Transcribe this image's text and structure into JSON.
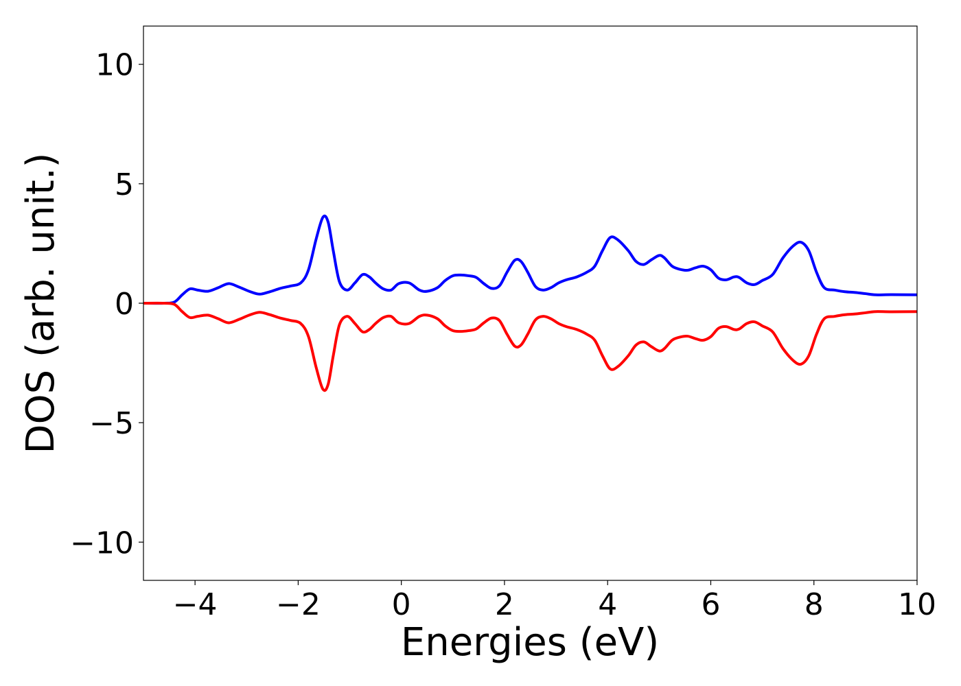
{
  "chart_data": {
    "type": "line",
    "title": "",
    "xlabel": "Energies (eV)",
    "ylabel": "DOS (arb. unit.)",
    "xlim": [
      -5,
      10
    ],
    "ylim": [
      -11.6,
      11.6
    ],
    "grid": false,
    "legend": "none",
    "x_ticks": [
      -4,
      -2,
      0,
      2,
      4,
      6,
      8,
      10
    ],
    "x_tick_labels": [
      "−4",
      "−2",
      "0",
      "2",
      "4",
      "6",
      "8",
      "10"
    ],
    "y_ticks": [
      10,
      5,
      0,
      -5,
      -10
    ],
    "y_tick_labels": [
      "10",
      "5",
      "0",
      "−5",
      "−10"
    ],
    "x": [
      -5.0,
      -4.6,
      -4.4,
      -4.25,
      -4.1,
      -3.95,
      -3.75,
      -3.55,
      -3.35,
      -3.15,
      -2.95,
      -2.75,
      -2.55,
      -2.35,
      -2.15,
      -1.95,
      -1.8,
      -1.65,
      -1.52,
      -1.42,
      -1.32,
      -1.2,
      -1.05,
      -0.9,
      -0.75,
      -0.62,
      -0.5,
      -0.35,
      -0.2,
      -0.05,
      0.15,
      0.35,
      0.5,
      0.7,
      0.85,
      1.0,
      1.15,
      1.3,
      1.45,
      1.6,
      1.75,
      1.9,
      2.05,
      2.2,
      2.32,
      2.45,
      2.6,
      2.75,
      2.9,
      3.05,
      3.2,
      3.4,
      3.6,
      3.75,
      3.9,
      4.05,
      4.2,
      4.4,
      4.55,
      4.7,
      4.85,
      5.0,
      5.1,
      5.25,
      5.4,
      5.55,
      5.7,
      5.85,
      6.0,
      6.15,
      6.3,
      6.45,
      6.55,
      6.7,
      6.85,
      7.0,
      7.2,
      7.4,
      7.6,
      7.75,
      7.9,
      8.05,
      8.2,
      8.4,
      8.6,
      8.8,
      9.0,
      9.2,
      9.5,
      10.0
    ],
    "series": [
      {
        "color": "#0000ff",
        "values": [
          0.0,
          0.0,
          0.05,
          0.35,
          0.6,
          0.55,
          0.5,
          0.65,
          0.82,
          0.68,
          0.5,
          0.38,
          0.48,
          0.62,
          0.72,
          0.85,
          1.4,
          2.7,
          3.6,
          3.4,
          2.2,
          0.9,
          0.55,
          0.85,
          1.2,
          1.1,
          0.85,
          0.6,
          0.55,
          0.82,
          0.85,
          0.55,
          0.5,
          0.65,
          0.95,
          1.15,
          1.18,
          1.15,
          1.08,
          0.82,
          0.62,
          0.72,
          1.3,
          1.8,
          1.75,
          1.3,
          0.7,
          0.55,
          0.65,
          0.85,
          0.98,
          1.1,
          1.3,
          1.55,
          2.2,
          2.75,
          2.65,
          2.2,
          1.75,
          1.62,
          1.82,
          2.0,
          1.9,
          1.55,
          1.42,
          1.38,
          1.48,
          1.55,
          1.4,
          1.05,
          0.98,
          1.1,
          1.08,
          0.85,
          0.78,
          0.95,
          1.2,
          1.9,
          2.4,
          2.55,
          2.2,
          1.3,
          0.65,
          0.55,
          0.48,
          0.45,
          0.4,
          0.35,
          0.36,
          0.35
        ]
      },
      {
        "color": "#ff0000",
        "values": [
          0.0,
          0.0,
          -0.05,
          -0.35,
          -0.6,
          -0.55,
          -0.5,
          -0.65,
          -0.82,
          -0.68,
          -0.5,
          -0.38,
          -0.48,
          -0.62,
          -0.72,
          -0.85,
          -1.4,
          -2.7,
          -3.6,
          -3.4,
          -2.2,
          -0.9,
          -0.55,
          -0.85,
          -1.2,
          -1.1,
          -0.85,
          -0.6,
          -0.55,
          -0.82,
          -0.85,
          -0.55,
          -0.5,
          -0.65,
          -0.95,
          -1.15,
          -1.18,
          -1.15,
          -1.08,
          -0.82,
          -0.62,
          -0.72,
          -1.3,
          -1.8,
          -1.75,
          -1.3,
          -0.7,
          -0.55,
          -0.65,
          -0.85,
          -0.98,
          -1.1,
          -1.3,
          -1.55,
          -2.2,
          -2.75,
          -2.65,
          -2.2,
          -1.75,
          -1.62,
          -1.82,
          -2.0,
          -1.9,
          -1.55,
          -1.42,
          -1.38,
          -1.48,
          -1.55,
          -1.4,
          -1.05,
          -0.98,
          -1.1,
          -1.08,
          -0.85,
          -0.78,
          -0.95,
          -1.2,
          -1.9,
          -2.4,
          -2.55,
          -2.2,
          -1.3,
          -0.65,
          -0.55,
          -0.48,
          -0.45,
          -0.4,
          -0.35,
          -0.36,
          -0.35
        ]
      }
    ]
  }
}
